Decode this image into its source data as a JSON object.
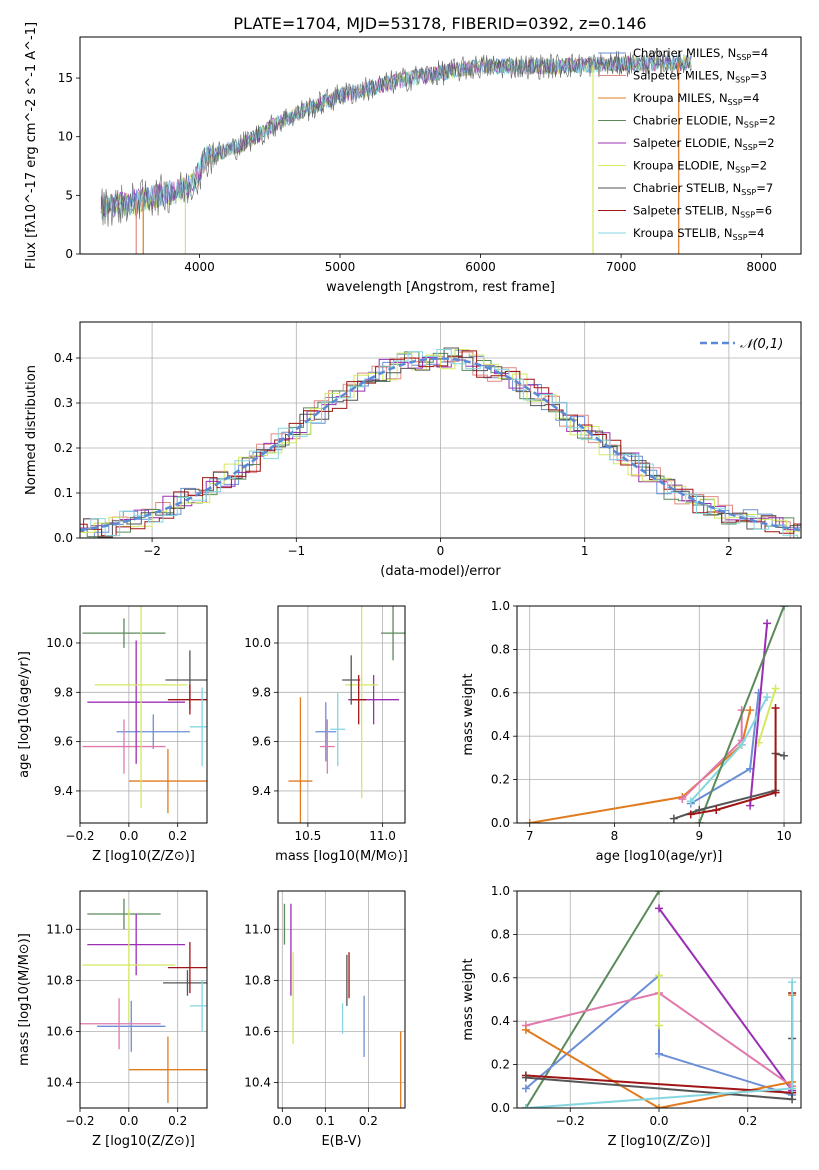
{
  "figure": {
    "title": "PLATE=1704, MJD=53178, FIBERID=0392, z=0.146"
  },
  "colors": {
    "c_miles": "#6a8fd6",
    "s_miles": "#e08a86",
    "k_miles": "#e07b1f",
    "c_elodie": "#5a8a5a",
    "s_elodie": "#9b2fb4",
    "k_elodie": "#d4e860",
    "c_stelib": "#555555",
    "s_stelib": "#a01515",
    "k_stelib": "#86d6e0",
    "pink": "#e07aad"
  },
  "chart_data": [
    {
      "id": "spectrum",
      "type": "line",
      "xlabel": "wavelength [Angstrom, rest frame]",
      "ylabel": "Flux [fλ10^-17 erg cm^-2 s^-1 A^-1]",
      "xlim": [
        3150,
        8280
      ],
      "ylim": [
        0,
        18.5
      ],
      "xticks": [
        4000,
        5000,
        6000,
        7000,
        8000
      ],
      "yticks": [
        0,
        5,
        10,
        15
      ],
      "legend_position": "top-right",
      "legend": [
        {
          "label": "Chabrier MILES, N_SSP=4",
          "color": "c_miles"
        },
        {
          "label": "Salpeter MILES, N_SSP=3",
          "color": "s_miles"
        },
        {
          "label": "Kroupa MILES, N_SSP=4",
          "color": "k_miles"
        },
        {
          "label": "Chabrier ELODIE, N_SSP=2",
          "color": "c_elodie"
        },
        {
          "label": "Salpeter ELODIE, N_SSP=2",
          "color": "s_elodie"
        },
        {
          "label": "Kroupa ELODIE, N_SSP=2",
          "color": "k_elodie"
        },
        {
          "label": "Chabrier STELIB, N_SSP=7",
          "color": "c_stelib"
        },
        {
          "label": "Salpeter STELIB, N_SSP=6",
          "color": "s_stelib"
        },
        {
          "label": "Kroupa STELIB, N_SSP=4",
          "color": "k_stelib"
        }
      ],
      "continuum": [
        [
          3300,
          4.0
        ],
        [
          3500,
          4.3
        ],
        [
          3700,
          5.0
        ],
        [
          3900,
          5.5
        ],
        [
          3950,
          6.0
        ],
        [
          4050,
          8.2
        ],
        [
          4300,
          9.3
        ],
        [
          4600,
          11.5
        ],
        [
          5000,
          13.5
        ],
        [
          5500,
          15.0
        ],
        [
          6000,
          16.0
        ],
        [
          6500,
          16.0
        ],
        [
          7000,
          16.2
        ],
        [
          7500,
          16.3
        ]
      ],
      "cutoffs": [
        {
          "x": 3550,
          "color": "s_miles"
        },
        {
          "x": 3600,
          "color": "k_miles"
        },
        {
          "x": 3900,
          "color": "k_elodie"
        },
        {
          "x": 6800,
          "color": "k_elodie"
        },
        {
          "x": 7410,
          "color": "k_miles"
        }
      ]
    },
    {
      "id": "residuals",
      "type": "histogram",
      "xlabel": "(data-model)/error",
      "ylabel": "Normed distribution",
      "xlim": [
        -2.5,
        2.5
      ],
      "ylim": [
        0,
        0.48
      ],
      "xticks": [
        -2,
        -1,
        0,
        1,
        2
      ],
      "yticks": [
        0.0,
        0.1,
        0.2,
        0.3,
        0.4
      ],
      "legend": "𝒩(0,1)",
      "legend_position": "top-right",
      "bin_width": 0.1,
      "curve": "normal(0,1)"
    },
    {
      "id": "age-vs-Z",
      "type": "errorbar",
      "xlabel": "Z [log10(Z/Z⊙)]",
      "ylabel": "age [log10(age/yr)]",
      "xlim": [
        -0.2,
        0.32
      ],
      "ylim": [
        9.27,
        10.15
      ],
      "xticks": [
        -0.2,
        0.0,
        0.2
      ],
      "yticks": [
        9.4,
        9.6,
        9.8,
        10.0
      ],
      "points": [
        {
          "x": 0.1,
          "y": 9.64,
          "xerr": 0.15,
          "yerr": 0.07,
          "color": "c_miles"
        },
        {
          "x": -0.02,
          "y": 9.58,
          "xerr": 0.17,
          "yerr": 0.11,
          "color": "pink"
        },
        {
          "x": 0.16,
          "y": 9.44,
          "xerr": 0.16,
          "yerr": 0.13,
          "color": "k_miles"
        },
        {
          "x": -0.02,
          "y": 10.04,
          "xerr": 0.17,
          "yerr": 0.06,
          "color": "c_elodie"
        },
        {
          "x": 0.03,
          "y": 9.76,
          "xerr": 0.2,
          "yerr": 0.25,
          "color": "s_elodie"
        },
        {
          "x": 0.05,
          "y": 9.83,
          "xerr": 0.19,
          "yerr": 0.5,
          "color": "k_elodie"
        },
        {
          "x": 0.25,
          "y": 9.85,
          "xerr": 0.1,
          "yerr": 0.12,
          "color": "c_stelib"
        },
        {
          "x": 0.25,
          "y": 9.77,
          "xerr": 0.09,
          "yerr": 0.06,
          "color": "s_stelib"
        },
        {
          "x": 0.3,
          "y": 9.66,
          "xerr": 0.05,
          "yerr": 0.16,
          "color": "k_stelib"
        }
      ]
    },
    {
      "id": "age-vs-mass",
      "type": "errorbar",
      "xlabel": "mass [log10(M/M⊙)]",
      "ylabel": "",
      "xlim": [
        10.3,
        11.15
      ],
      "ylim": [
        9.27,
        10.15
      ],
      "xticks": [
        10.5,
        11.0
      ],
      "yticks": [
        9.4,
        9.6,
        9.8,
        10.0
      ],
      "points": [
        {
          "x": 10.62,
          "y": 9.64,
          "xerr": 0.07,
          "yerr": 0.12,
          "color": "c_miles"
        },
        {
          "x": 10.63,
          "y": 9.58,
          "xerr": 0.05,
          "yerr": 0.11,
          "color": "pink"
        },
        {
          "x": 10.45,
          "y": 9.44,
          "xerr": 0.08,
          "yerr": 0.34,
          "color": "k_miles"
        },
        {
          "x": 11.07,
          "y": 10.04,
          "xerr": 0.08,
          "yerr": 0.11,
          "color": "c_elodie"
        },
        {
          "x": 10.94,
          "y": 9.77,
          "xerr": 0.17,
          "yerr": 0.1,
          "color": "s_elodie"
        },
        {
          "x": 10.86,
          "y": 9.83,
          "xerr": 0.11,
          "yerr": 0.46,
          "color": "k_elodie"
        },
        {
          "x": 10.79,
          "y": 9.85,
          "xerr": 0.06,
          "yerr": 0.1,
          "color": "c_stelib"
        },
        {
          "x": 10.84,
          "y": 9.77,
          "xerr": 0.05,
          "yerr": 0.1,
          "color": "s_stelib"
        },
        {
          "x": 10.7,
          "y": 9.65,
          "xerr": 0.05,
          "yerr": 0.15,
          "color": "k_stelib"
        }
      ]
    },
    {
      "id": "weight-vs-age",
      "type": "line",
      "xlabel": "age [log10(age/yr)]",
      "ylabel": "mass weight",
      "xlim": [
        6.85,
        10.2
      ],
      "ylim": [
        0,
        1.0
      ],
      "xticks": [
        7,
        8,
        9,
        10
      ],
      "yticks": [
        0.0,
        0.2,
        0.4,
        0.6,
        0.8,
        1.0
      ],
      "series": [
        {
          "color": "k_miles",
          "points": [
            [
              7.0,
              0.0
            ],
            [
              8.8,
              0.12
            ],
            [
              9.5,
              0.36
            ],
            [
              9.6,
              0.52
            ]
          ]
        },
        {
          "color": "pink",
          "points": [
            [
              8.8,
              0.11
            ],
            [
              9.5,
              0.38
            ],
            [
              9.5,
              0.52
            ]
          ]
        },
        {
          "color": "c_miles",
          "points": [
            [
              8.9,
              0.09
            ],
            [
              9.6,
              0.25
            ],
            [
              9.7,
              0.6
            ]
          ]
        },
        {
          "color": "k_stelib",
          "points": [
            [
              8.9,
              0.1
            ],
            [
              9.5,
              0.36
            ],
            [
              9.8,
              0.58
            ]
          ]
        },
        {
          "color": "k_elodie",
          "points": [
            [
              9.7,
              0.37
            ],
            [
              9.9,
              0.62
            ]
          ]
        },
        {
          "color": "s_elodie",
          "points": [
            [
              9.6,
              0.08
            ],
            [
              9.8,
              0.92
            ]
          ]
        },
        {
          "color": "c_elodie",
          "points": [
            [
              9.0,
              0.0
            ],
            [
              10.0,
              1.0
            ]
          ]
        },
        {
          "color": "c_stelib",
          "points": [
            [
              8.7,
              0.02
            ],
            [
              9.0,
              0.06
            ],
            [
              9.9,
              0.15
            ],
            [
              9.9,
              0.32
            ],
            [
              10.0,
              0.31
            ]
          ]
        },
        {
          "color": "s_stelib",
          "points": [
            [
              8.9,
              0.04
            ],
            [
              9.2,
              0.06
            ],
            [
              9.9,
              0.14
            ],
            [
              9.9,
              0.53
            ]
          ]
        }
      ]
    },
    {
      "id": "mass-vs-Z",
      "type": "errorbar",
      "xlabel": "Z [log10(Z/Z⊙)]",
      "ylabel": "mass [log10(M/M⊙)]",
      "xlim": [
        -0.2,
        0.32
      ],
      "ylim": [
        10.3,
        11.15
      ],
      "xticks": [
        -0.2,
        0.0,
        0.2
      ],
      "yticks": [
        10.4,
        10.6,
        10.8,
        11.0
      ],
      "points": [
        {
          "x": 0.01,
          "y": 10.62,
          "xerr": 0.14,
          "yerr": 0.1,
          "color": "c_miles"
        },
        {
          "x": -0.04,
          "y": 10.63,
          "xerr": 0.17,
          "yerr": 0.1,
          "color": "pink"
        },
        {
          "x": 0.16,
          "y": 10.45,
          "xerr": 0.16,
          "yerr": 0.13,
          "color": "k_miles"
        },
        {
          "x": -0.02,
          "y": 11.06,
          "xerr": 0.15,
          "yerr": 0.06,
          "color": "c_elodie"
        },
        {
          "x": 0.03,
          "y": 10.94,
          "xerr": 0.2,
          "yerr": 0.12,
          "color": "s_elodie"
        },
        {
          "x": 0.0,
          "y": 10.86,
          "xerr": 0.19,
          "yerr": 0.22,
          "color": "k_elodie"
        },
        {
          "x": 0.24,
          "y": 10.79,
          "xerr": 0.1,
          "yerr": 0.05,
          "color": "c_stelib"
        },
        {
          "x": 0.25,
          "y": 10.85,
          "xerr": 0.09,
          "yerr": 0.1,
          "color": "s_stelib"
        },
        {
          "x": 0.3,
          "y": 10.7,
          "xerr": 0.05,
          "yerr": 0.1,
          "color": "k_stelib"
        }
      ]
    },
    {
      "id": "mass-vs-ebv",
      "type": "errorbar",
      "xlabel": "E(B-V)",
      "ylabel": "",
      "xlim": [
        -0.01,
        0.285
      ],
      "ylim": [
        10.3,
        11.15
      ],
      "xticks": [
        0.0,
        0.1,
        0.2
      ],
      "yticks": [
        10.4,
        10.6,
        10.8,
        11.0
      ],
      "points": [
        {
          "x": 0.19,
          "y": 10.62,
          "xerr": 0.0,
          "yerr": 0.12,
          "color": "c_miles"
        },
        {
          "x": 0.275,
          "y": 10.45,
          "xerr": 0.0,
          "yerr": 0.15,
          "color": "k_miles"
        },
        {
          "x": 0.005,
          "y": 11.02,
          "xerr": 0.0,
          "yerr": 0.08,
          "color": "c_elodie"
        },
        {
          "x": 0.02,
          "y": 10.92,
          "xerr": 0.0,
          "yerr": 0.18,
          "color": "s_elodie"
        },
        {
          "x": 0.025,
          "y": 10.73,
          "xerr": 0.0,
          "yerr": 0.18,
          "color": "k_elodie"
        },
        {
          "x": 0.15,
          "y": 10.8,
          "xerr": 0.0,
          "yerr": 0.1,
          "color": "c_stelib"
        },
        {
          "x": 0.155,
          "y": 10.82,
          "xerr": 0.0,
          "yerr": 0.09,
          "color": "s_stelib"
        },
        {
          "x": 0.14,
          "y": 10.65,
          "xerr": 0.0,
          "yerr": 0.06,
          "color": "k_stelib"
        }
      ]
    },
    {
      "id": "weight-vs-Z",
      "type": "line",
      "xlabel": "Z [log10(Z/Z⊙)]",
      "ylabel": "mass weight",
      "xlim": [
        -0.32,
        0.32
      ],
      "ylim": [
        0,
        1.0
      ],
      "xticks": [
        -0.2,
        0.0,
        0.2
      ],
      "yticks": [
        0.0,
        0.2,
        0.4,
        0.6,
        0.8,
        1.0
      ],
      "series": [
        {
          "color": "c_elodie",
          "points": [
            [
              -0.3,
              0.0
            ],
            [
              0.0,
              1.0
            ]
          ]
        },
        {
          "color": "s_elodie",
          "points": [
            [
              0.0,
              0.92
            ],
            [
              0.3,
              0.08
            ]
          ]
        },
        {
          "color": "c_miles",
          "points": [
            [
              -0.3,
              0.09
            ],
            [
              0.0,
              0.61
            ],
            [
              0.0,
              0.25
            ],
            [
              0.3,
              0.06
            ]
          ]
        },
        {
          "color": "pink",
          "points": [
            [
              -0.3,
              0.38
            ],
            [
              0.0,
              0.53
            ],
            [
              0.3,
              0.1
            ]
          ]
        },
        {
          "color": "k_miles",
          "points": [
            [
              -0.3,
              0.36
            ],
            [
              0.0,
              0.0
            ],
            [
              0.3,
              0.12
            ],
            [
              0.3,
              0.52
            ]
          ]
        },
        {
          "color": "k_elodie",
          "points": [
            [
              0.0,
              0.61
            ],
            [
              0.0,
              0.38
            ]
          ]
        },
        {
          "color": "s_stelib",
          "points": [
            [
              -0.3,
              0.15
            ],
            [
              0.3,
              0.07
            ],
            [
              0.3,
              0.53
            ]
          ]
        },
        {
          "color": "c_stelib",
          "points": [
            [
              -0.3,
              0.14
            ],
            [
              0.3,
              0.04
            ],
            [
              0.3,
              0.32
            ]
          ]
        },
        {
          "color": "k_stelib",
          "points": [
            [
              -0.3,
              0.0
            ],
            [
              0.3,
              0.09
            ],
            [
              0.3,
              0.58
            ]
          ]
        }
      ]
    }
  ]
}
